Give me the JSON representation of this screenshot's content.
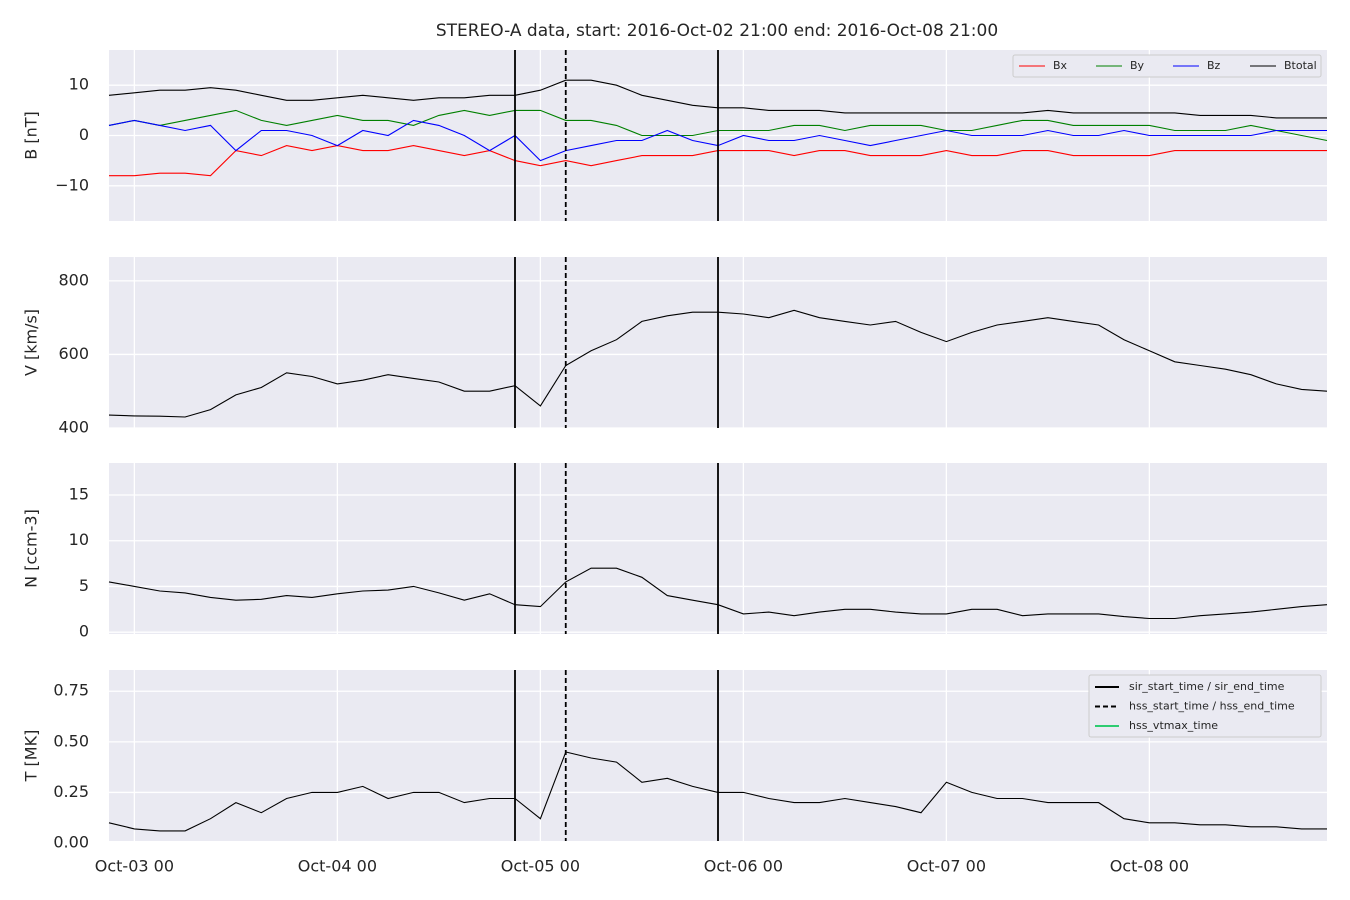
{
  "title": "STEREO-A data, start: 2016-Oct-02 21:00  end: 2016-Oct-08 21:00",
  "x": [
    "Oct-02 21",
    "Oct-03 00",
    "Oct-03 03",
    "Oct-03 06",
    "Oct-03 09",
    "Oct-03 12",
    "Oct-03 15",
    "Oct-03 18",
    "Oct-03 21",
    "Oct-04 00",
    "Oct-04 03",
    "Oct-04 06",
    "Oct-04 09",
    "Oct-04 12",
    "Oct-04 15",
    "Oct-04 18",
    "Oct-04 21",
    "Oct-05 00",
    "Oct-05 03",
    "Oct-05 06",
    "Oct-05 09",
    "Oct-05 12",
    "Oct-05 15",
    "Oct-05 18",
    "Oct-05 21",
    "Oct-06 00",
    "Oct-06 03",
    "Oct-06 06",
    "Oct-06 09",
    "Oct-06 12",
    "Oct-06 15",
    "Oct-06 18",
    "Oct-06 21",
    "Oct-07 00",
    "Oct-07 03",
    "Oct-07 06",
    "Oct-07 09",
    "Oct-07 12",
    "Oct-07 15",
    "Oct-07 18",
    "Oct-07 21",
    "Oct-08 00",
    "Oct-08 03",
    "Oct-08 06",
    "Oct-08 09",
    "Oct-08 12",
    "Oct-08 15",
    "Oct-08 18",
    "Oct-08 21"
  ],
  "xlim": [
    "Oct-02 21",
    "Oct-08 21"
  ],
  "xticks": [
    "Oct-03 00",
    "Oct-04 00",
    "Oct-05 00",
    "Oct-06 00",
    "Oct-07 00",
    "Oct-08 00"
  ],
  "markers": [
    {
      "name": "sir_start_time / sir_end_time",
      "color": "#000000",
      "style": "solid",
      "times": [
        "Oct-04 21",
        "Oct-05 21"
      ]
    },
    {
      "name": "hss_start_time / hss_end_time",
      "color": "#000000",
      "style": "dashed",
      "times": [
        "Oct-05 03"
      ]
    },
    {
      "name": "hss_vtmax_time",
      "color": "#2ecc71",
      "style": "solid",
      "times": []
    }
  ],
  "chart_data": [
    {
      "type": "line",
      "ylabel": "B [nT]",
      "ylim": [
        -17,
        17
      ],
      "yticks": [
        {
          "value": -10,
          "label": "−10"
        },
        0,
        10
      ],
      "grid": true,
      "legend": "upper right",
      "series": [
        {
          "name": "Bx",
          "color": "#ff0000",
          "values": [
            -8,
            -8,
            -7.5,
            -7.5,
            -8,
            -3,
            -4,
            -2,
            -3,
            -2,
            -3,
            -3,
            -2,
            -3,
            -4,
            -3,
            -5,
            -6,
            -5,
            -6,
            -5,
            -4,
            -4,
            -4,
            -3,
            -3,
            -3,
            -4,
            -3,
            -3,
            -4,
            -4,
            -4,
            -3,
            -4,
            -4,
            -3,
            -3,
            -4,
            -4,
            -4,
            -4,
            -3,
            -3,
            -3,
            -3,
            -3,
            -3,
            -3
          ]
        },
        {
          "name": "By",
          "color": "#008000",
          "values": [
            2,
            3,
            2,
            3,
            4,
            5,
            3,
            2,
            3,
            4,
            3,
            3,
            2,
            4,
            5,
            4,
            5,
            5,
            3,
            3,
            2,
            0,
            0,
            0,
            1,
            1,
            1,
            2,
            2,
            1,
            2,
            2,
            2,
            1,
            1,
            2,
            3,
            3,
            2,
            2,
            2,
            2,
            1,
            1,
            1,
            2,
            1,
            0,
            -1
          ]
        },
        {
          "name": "Bz",
          "color": "#0000ff",
          "values": [
            2,
            3,
            2,
            1,
            2,
            -3,
            1,
            1,
            0,
            -2,
            1,
            0,
            3,
            2,
            0,
            -3,
            0,
            -5,
            -3,
            -2,
            -1,
            -1,
            1,
            -1,
            -2,
            0,
            -1,
            -1,
            0,
            -1,
            -2,
            -1,
            0,
            1,
            0,
            0,
            0,
            1,
            0,
            0,
            1,
            0,
            0,
            0,
            0,
            0,
            1,
            1,
            1
          ]
        },
        {
          "name": "Btotal",
          "color": "#000000",
          "values": [
            8,
            8.5,
            9,
            9,
            9.5,
            9,
            8,
            7,
            7,
            7.5,
            8,
            7.5,
            7,
            7.5,
            7.5,
            8,
            8,
            9,
            11,
            11,
            10,
            8,
            7,
            6,
            5.5,
            5.5,
            5,
            5,
            5,
            4.5,
            4.5,
            4.5,
            4.5,
            4.5,
            4.5,
            4.5,
            4.5,
            5,
            4.5,
            4.5,
            4.5,
            4.5,
            4.5,
            4,
            4,
            4,
            3.5,
            3.5,
            3.5
          ]
        }
      ]
    },
    {
      "type": "line",
      "ylabel": "V [km/s]",
      "ylim": [
        400,
        865
      ],
      "yticks": [
        400,
        600,
        800
      ],
      "grid": true,
      "series": [
        {
          "color": "#000000",
          "values": [
            435,
            433,
            432,
            430,
            450,
            490,
            510,
            550,
            540,
            520,
            530,
            545,
            535,
            525,
            500,
            500,
            515,
            460,
            570,
            610,
            640,
            690,
            705,
            715,
            715,
            710,
            700,
            720,
            700,
            690,
            680,
            690,
            660,
            635,
            660,
            680,
            690,
            700,
            690,
            680,
            640,
            610,
            580,
            570,
            560,
            545,
            520,
            505,
            500
          ]
        }
      ]
    },
    {
      "type": "line",
      "ylabel": "N [ccm-3]",
      "ylim": [
        -0.2,
        18.5
      ],
      "yticks": [
        0,
        5,
        10,
        15
      ],
      "grid": true,
      "series": [
        {
          "color": "#000000",
          "values": [
            5.5,
            5.0,
            4.5,
            4.3,
            3.8,
            3.5,
            3.6,
            4.0,
            3.8,
            4.2,
            4.5,
            4.6,
            5.0,
            4.3,
            3.5,
            4.2,
            3.0,
            2.8,
            5.5,
            7.0,
            7.0,
            6.0,
            4.0,
            3.5,
            3.0,
            2.0,
            2.2,
            1.8,
            2.2,
            2.5,
            2.5,
            2.2,
            2.0,
            2.0,
            2.5,
            2.5,
            1.8,
            2.0,
            2.0,
            2.0,
            1.7,
            1.5,
            1.5,
            1.8,
            2.0,
            2.2,
            2.5,
            2.8,
            3.0
          ]
        }
      ]
    },
    {
      "type": "line",
      "ylabel": "T [MK]",
      "ylim": [
        0.01,
        0.855
      ],
      "yticks": [
        {
          "value": 0,
          "label": "0.00"
        },
        0.25,
        {
          "value": 0.5,
          "label": "0.50"
        },
        0.75
      ],
      "grid": true,
      "marker_legend": "upper right",
      "series": [
        {
          "color": "#000000",
          "values": [
            0.1,
            0.07,
            0.06,
            0.06,
            0.12,
            0.2,
            0.15,
            0.22,
            0.25,
            0.25,
            0.28,
            0.22,
            0.25,
            0.25,
            0.2,
            0.22,
            0.22,
            0.12,
            0.45,
            0.42,
            0.4,
            0.3,
            0.32,
            0.28,
            0.25,
            0.25,
            0.22,
            0.2,
            0.2,
            0.22,
            0.2,
            0.18,
            0.15,
            0.3,
            0.25,
            0.22,
            0.22,
            0.2,
            0.2,
            0.2,
            0.12,
            0.1,
            0.1,
            0.09,
            0.09,
            0.08,
            0.08,
            0.07,
            0.07
          ]
        }
      ]
    }
  ]
}
